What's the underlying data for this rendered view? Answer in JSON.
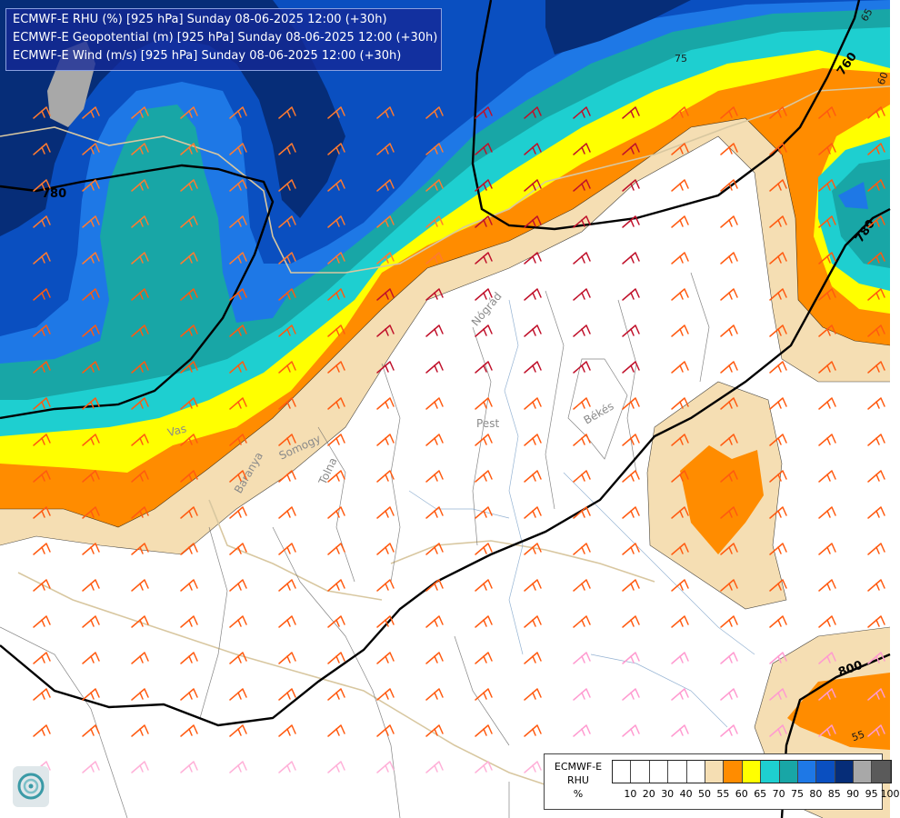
{
  "header": {
    "line1": "ECMWF-E RHU (%) [925 hPa] Sunday 08-06-2025 12:00 (+30h)",
    "line2": "ECMWF-E Geopotential (m) [925 hPa] Sunday 08-06-2025 12:00 (+30h)",
    "line3": "ECMWF-E Wind (m/s) [925 hPa] Sunday 08-06-2025 12:00 (+30h)"
  },
  "contour_labels": {
    "gp_780_west": "780",
    "gp_760": "760",
    "gp_780_east": "780",
    "gp_800": "800",
    "rh_75": "75",
    "rh_65": "65",
    "rh_60": "60",
    "rh_55": "55"
  },
  "place_labels": {
    "pest": "Pest",
    "bekes": "Békés",
    "vas": "Vas",
    "tolna": "Tolna",
    "baranya": "Baranya",
    "somogy": "Somogy",
    "nograd": "Nógrád"
  },
  "legend": {
    "title_line1": "ECMWF-E",
    "title_line2": "RHU",
    "title_line3": "%",
    "colors": [
      "#ffffff",
      "#ffffff",
      "#ffffff",
      "#ffffff",
      "#ffffff",
      "#f5deb3",
      "#ff8c00",
      "#ffff00",
      "#1ecfd0",
      "#18a6a6",
      "#1e78e6",
      "#0a4fc0",
      "#062d78",
      "#a8a8a8",
      "#5a5a5a"
    ],
    "ticks": [
      "10",
      "20",
      "30",
      "40",
      "50",
      "55",
      "60",
      "65",
      "70",
      "75",
      "80",
      "85",
      "90",
      "95",
      "100"
    ]
  },
  "colors": {
    "rh_55": "#f5deb3",
    "rh_60": "#ff8c00",
    "rh_65": "#ffff00",
    "rh_70": "#1ecfd0",
    "rh_75": "#18a6a6",
    "rh_80": "#1e78e6",
    "rh_85": "#0a4fc0",
    "rh_90": "#062d78",
    "rh_95": "#a8a8a8",
    "header_bg": "#142896"
  },
  "logo_icon": "ecmwf-swirl-logo-icon"
}
